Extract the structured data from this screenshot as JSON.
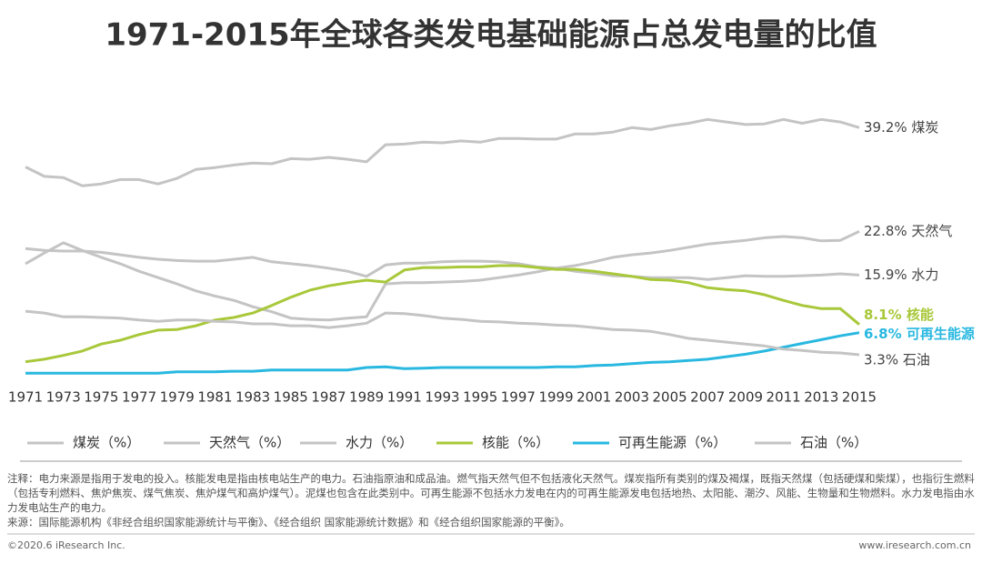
{
  "chart_data": {
    "type": "line",
    "title": "1971-2015年全球各类发电基础能源占总发电量的比值",
    "x": [
      1971,
      1972,
      1973,
      1974,
      1975,
      1976,
      1977,
      1978,
      1979,
      1980,
      1981,
      1982,
      1983,
      1984,
      1985,
      1986,
      1987,
      1988,
      1989,
      1990,
      1991,
      1992,
      1993,
      1994,
      1995,
      1996,
      1997,
      1998,
      1999,
      2000,
      2001,
      2002,
      2003,
      2004,
      2005,
      2006,
      2007,
      2008,
      2009,
      2010,
      2011,
      2012,
      2013,
      2014,
      2015
    ],
    "xlim": [
      1971,
      2015
    ],
    "xticks": [
      1971,
      1973,
      1975,
      1977,
      1979,
      1981,
      1983,
      1985,
      1987,
      1989,
      1991,
      1993,
      1995,
      1997,
      1999,
      2001,
      2003,
      2005,
      2007,
      2009,
      2011,
      2013,
      2015
    ],
    "ylim": [
      0,
      45
    ],
    "series": [
      {
        "name": "煤炭（%）",
        "color": "#c4c4c4",
        "end_label": "39.2% 煤炭",
        "values": [
          33.0,
          31.5,
          31.3,
          30.0,
          30.3,
          31.0,
          31.0,
          30.3,
          31.2,
          32.6,
          32.9,
          33.3,
          33.6,
          33.5,
          34.3,
          34.2,
          34.5,
          34.2,
          33.8,
          36.5,
          36.6,
          36.9,
          36.8,
          37.1,
          36.9,
          37.5,
          37.5,
          37.4,
          37.4,
          38.2,
          38.2,
          38.5,
          39.2,
          38.9,
          39.5,
          39.9,
          40.5,
          40.1,
          39.7,
          39.8,
          40.5,
          39.9,
          40.5,
          40.1,
          39.2
        ]
      },
      {
        "name": "天然气（%）",
        "color": "#c4c4c4",
        "end_label": "22.8% 天然气",
        "values": [
          17.7,
          19.4,
          21.0,
          19.8,
          18.7,
          17.7,
          16.5,
          15.5,
          14.5,
          13.4,
          12.6,
          11.9,
          10.9,
          10.1,
          9.1,
          8.9,
          8.8,
          9.1,
          9.3,
          14.5,
          14.7,
          14.7,
          14.8,
          14.9,
          15.1,
          15.5,
          15.9,
          16.4,
          17.0,
          17.4,
          18.0,
          18.7,
          19.1,
          19.4,
          19.8,
          20.3,
          20.8,
          21.1,
          21.4,
          21.8,
          22.0,
          21.8,
          21.3,
          21.4,
          22.8
        ]
      },
      {
        "name": "水力（%）",
        "color": "#c4c4c4",
        "end_label": "15.9% 水力",
        "values": [
          20.1,
          19.8,
          19.7,
          19.7,
          19.5,
          19.1,
          18.7,
          18.4,
          18.2,
          18.1,
          18.1,
          18.4,
          18.7,
          18.0,
          17.7,
          17.4,
          17.0,
          16.5,
          15.7,
          17.5,
          17.8,
          17.8,
          18.0,
          18.1,
          18.1,
          18.0,
          17.7,
          17.2,
          17.0,
          16.5,
          16.2,
          15.8,
          15.7,
          15.5,
          15.5,
          15.5,
          15.2,
          15.5,
          15.8,
          15.7,
          15.7,
          15.8,
          15.9,
          16.1,
          15.9
        ]
      },
      {
        "name": "核能（%）",
        "color": "#a8c83a",
        "end_label": "8.1% 核能",
        "values": [
          2.2,
          2.6,
          3.2,
          3.9,
          5.0,
          5.6,
          6.5,
          7.2,
          7.3,
          7.9,
          8.8,
          9.2,
          9.9,
          11.1,
          12.4,
          13.5,
          14.2,
          14.7,
          15.1,
          14.8,
          16.7,
          17.1,
          17.1,
          17.2,
          17.2,
          17.4,
          17.4,
          17.1,
          16.8,
          16.8,
          16.5,
          16.1,
          15.7,
          15.2,
          15.1,
          14.7,
          13.9,
          13.6,
          13.4,
          12.8,
          11.9,
          11.1,
          10.6,
          10.6,
          8.1
        ]
      },
      {
        "name": "可再生能源（%）",
        "color": "#29b8e0",
        "end_label": "6.8% 可再生能源",
        "values": [
          0.4,
          0.4,
          0.4,
          0.4,
          0.4,
          0.4,
          0.4,
          0.4,
          0.6,
          0.6,
          0.6,
          0.7,
          0.7,
          0.9,
          0.9,
          0.9,
          0.9,
          0.9,
          1.3,
          1.4,
          1.1,
          1.2,
          1.3,
          1.3,
          1.3,
          1.3,
          1.3,
          1.3,
          1.4,
          1.4,
          1.6,
          1.7,
          1.9,
          2.1,
          2.2,
          2.4,
          2.6,
          3.0,
          3.4,
          3.9,
          4.5,
          5.1,
          5.7,
          6.3,
          6.8
        ]
      },
      {
        "name": "石油（%）",
        "color": "#c4c4c4",
        "end_label": "3.3% 石油",
        "values": [
          10.2,
          9.9,
          9.3,
          9.3,
          9.2,
          9.1,
          8.8,
          8.6,
          8.8,
          8.8,
          8.6,
          8.5,
          8.2,
          8.2,
          7.9,
          7.9,
          7.6,
          7.9,
          8.3,
          9.9,
          9.8,
          9.5,
          9.1,
          8.9,
          8.6,
          8.5,
          8.3,
          8.2,
          8.0,
          7.9,
          7.6,
          7.3,
          7.2,
          7.0,
          6.5,
          5.9,
          5.6,
          5.3,
          5.0,
          4.7,
          4.2,
          4.0,
          3.7,
          3.6,
          3.3
        ]
      }
    ]
  },
  "note": "注释：电力来源是指用于发电的投入。核能发电是指由核电站生产的电力。石油指原油和成品油。燃气指天然气但不包括液化天然气。煤炭指所有类别的煤及褐煤，既指天然煤（包括硬煤和柴煤），也指衍生燃料（包括专利燃料、焦炉焦炭、煤气焦炭、焦炉煤气和高炉煤气）。泥煤也包含在此类别中。可再生能源不包括水力发电在内的可再生能源发电包括地热、太阳能、潮汐、风能、生物量和生物燃料。水力发电指由水力发电站生产的电力。",
  "source": "来源：国际能源机构《非经合组织国家能源统计与平衡》、《经合组织 国家能源统计数据》和《经合组织国家能源的平衡》。",
  "copyright": "©2020.6 iResearch Inc.",
  "website": "www.iresearch.com.cn"
}
